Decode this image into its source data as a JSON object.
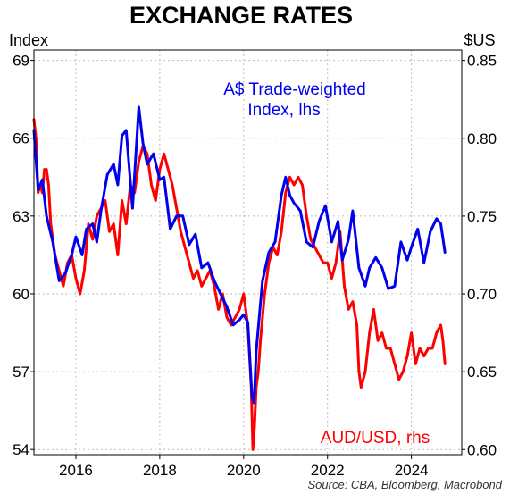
{
  "chart_data": {
    "type": "line",
    "title": "EXCHANGE RATES",
    "left_unit": "Index",
    "right_unit": "$US",
    "x_range": [
      2015.0,
      2025.2
    ],
    "x_ticks": [
      {
        "value": 2016,
        "label": "2016"
      },
      {
        "value": 2018,
        "label": "2018"
      },
      {
        "value": 2020,
        "label": "2020"
      },
      {
        "value": 2022,
        "label": "2022"
      },
      {
        "value": 2024,
        "label": "2024"
      }
    ],
    "left_axis": {
      "range": [
        53.8,
        69.4
      ],
      "ticks": [
        {
          "value": 54,
          "label": "54"
        },
        {
          "value": 57,
          "label": "57"
        },
        {
          "value": 60,
          "label": "60"
        },
        {
          "value": 63,
          "label": "63"
        },
        {
          "value": 66,
          "label": "66"
        },
        {
          "value": 69,
          "label": "69"
        }
      ]
    },
    "right_axis": {
      "range": [
        0.5967,
        0.8567
      ],
      "ticks": [
        {
          "value": 0.6,
          "label": "0.60"
        },
        {
          "value": 0.65,
          "label": "0.65"
        },
        {
          "value": 0.7,
          "label": "0.70"
        },
        {
          "value": 0.75,
          "label": "0.75"
        },
        {
          "value": 0.8,
          "label": "0.80"
        },
        {
          "value": 0.85,
          "label": "0.85"
        }
      ]
    },
    "grid": true,
    "annotations": {
      "twi_line1": "A$ Trade-weighted",
      "twi_line2": "Index, lhs",
      "aud": "AUD/USD, rhs"
    },
    "source": "Source: CBA, Bloomberg, Macrobond",
    "colors": {
      "twi": "#0000ee",
      "aud": "#ff0000",
      "grid": "#bdbdbd"
    },
    "series": [
      {
        "name": "A$ Trade-weighted Index, lhs",
        "axis": "left",
        "color": "#0000ee",
        "x": [
          2015.0,
          2015.1,
          2015.2,
          2015.3,
          2015.45,
          2015.6,
          2015.75,
          2015.9,
          2016.0,
          2016.15,
          2016.25,
          2016.4,
          2016.5,
          2016.6,
          2016.75,
          2016.9,
          2017.0,
          2017.1,
          2017.2,
          2017.35,
          2017.5,
          2017.6,
          2017.7,
          2017.85,
          2018.0,
          2018.1,
          2018.25,
          2018.4,
          2018.55,
          2018.7,
          2018.85,
          2019.0,
          2019.15,
          2019.3,
          2019.45,
          2019.6,
          2019.75,
          2019.9,
          2020.0,
          2020.1,
          2020.2,
          2020.25,
          2020.3,
          2020.45,
          2020.6,
          2020.75,
          2020.9,
          2021.0,
          2021.1,
          2021.2,
          2021.35,
          2021.5,
          2021.65,
          2021.8,
          2021.95,
          2022.1,
          2022.25,
          2022.35,
          2022.5,
          2022.6,
          2022.75,
          2022.9,
          2023.0,
          2023.15,
          2023.3,
          2023.45,
          2023.6,
          2023.75,
          2023.9,
          2024.0,
          2024.15,
          2024.3,
          2024.45,
          2024.6,
          2024.7,
          2024.8
        ],
        "y": [
          66.3,
          64.0,
          64.4,
          63.0,
          62.0,
          60.5,
          60.8,
          61.5,
          62.2,
          61.5,
          62.5,
          62.7,
          62.0,
          63.2,
          64.6,
          65.0,
          64.2,
          66.1,
          66.3,
          63.3,
          67.2,
          65.8,
          65.0,
          65.4,
          64.4,
          64.5,
          62.5,
          63.0,
          63.0,
          61.9,
          62.3,
          61.0,
          61.2,
          60.5,
          60.0,
          59.5,
          58.8,
          59.0,
          59.2,
          58.9,
          56.0,
          55.8,
          57.8,
          60.5,
          61.6,
          62.0,
          63.8,
          64.5,
          63.8,
          63.5,
          63.2,
          62.0,
          61.8,
          62.8,
          63.4,
          62.0,
          62.8,
          61.3,
          62.1,
          63.2,
          61.0,
          60.3,
          61.0,
          61.4,
          61.0,
          60.2,
          60.3,
          62.0,
          61.3,
          61.8,
          62.5,
          61.2,
          62.4,
          62.9,
          62.7,
          61.6
        ]
      },
      {
        "name": "AUD/USD, rhs",
        "axis": "right",
        "color": "#ff0000",
        "x": [
          2015.0,
          2015.05,
          2015.1,
          2015.15,
          2015.2,
          2015.25,
          2015.3,
          2015.35,
          2015.4,
          2015.5,
          2015.6,
          2015.7,
          2015.8,
          2015.9,
          2016.0,
          2016.1,
          2016.2,
          2016.3,
          2016.4,
          2016.5,
          2016.6,
          2016.7,
          2016.8,
          2016.9,
          2017.0,
          2017.1,
          2017.2,
          2017.3,
          2017.4,
          2017.5,
          2017.6,
          2017.7,
          2017.8,
          2017.9,
          2018.0,
          2018.1,
          2018.2,
          2018.3,
          2018.4,
          2018.5,
          2018.6,
          2018.7,
          2018.8,
          2018.9,
          2019.0,
          2019.1,
          2019.2,
          2019.3,
          2019.4,
          2019.5,
          2019.6,
          2019.7,
          2019.8,
          2019.9,
          2020.0,
          2020.1,
          2020.18,
          2020.22,
          2020.26,
          2020.3,
          2020.35,
          2020.4,
          2020.5,
          2020.6,
          2020.7,
          2020.8,
          2020.9,
          2021.0,
          2021.1,
          2021.2,
          2021.3,
          2021.4,
          2021.5,
          2021.6,
          2021.7,
          2021.8,
          2021.9,
          2022.0,
          2022.1,
          2022.2,
          2022.3,
          2022.4,
          2022.5,
          2022.6,
          2022.7,
          2022.75,
          2022.8,
          2022.9,
          2023.0,
          2023.1,
          2023.2,
          2023.3,
          2023.4,
          2023.5,
          2023.6,
          2023.7,
          2023.8,
          2023.9,
          2024.0,
          2024.1,
          2024.2,
          2024.3,
          2024.4,
          2024.5,
          2024.6,
          2024.7,
          2024.75,
          2024.8
        ],
        "y": [
          0.812,
          0.8,
          0.765,
          0.77,
          0.765,
          0.78,
          0.78,
          0.77,
          0.745,
          0.725,
          0.715,
          0.705,
          0.72,
          0.725,
          0.71,
          0.7,
          0.715,
          0.745,
          0.735,
          0.75,
          0.755,
          0.76,
          0.74,
          0.745,
          0.725,
          0.76,
          0.745,
          0.77,
          0.765,
          0.785,
          0.795,
          0.79,
          0.77,
          0.76,
          0.78,
          0.79,
          0.78,
          0.77,
          0.755,
          0.74,
          0.73,
          0.72,
          0.71,
          0.715,
          0.705,
          0.71,
          0.715,
          0.705,
          0.69,
          0.7,
          0.685,
          0.68,
          0.685,
          0.69,
          0.7,
          0.68,
          0.64,
          0.6,
          0.615,
          0.64,
          0.65,
          0.67,
          0.7,
          0.72,
          0.73,
          0.725,
          0.74,
          0.765,
          0.775,
          0.77,
          0.775,
          0.77,
          0.75,
          0.735,
          0.73,
          0.725,
          0.72,
          0.72,
          0.71,
          0.72,
          0.74,
          0.705,
          0.69,
          0.695,
          0.68,
          0.65,
          0.64,
          0.65,
          0.675,
          0.69,
          0.67,
          0.675,
          0.665,
          0.665,
          0.655,
          0.645,
          0.65,
          0.66,
          0.675,
          0.655,
          0.665,
          0.66,
          0.665,
          0.665,
          0.675,
          0.68,
          0.67,
          0.655
        ]
      }
    ]
  }
}
